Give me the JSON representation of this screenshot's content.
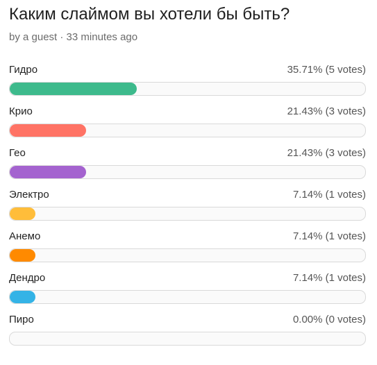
{
  "poll": {
    "title": "Каким слаймом вы хотели бы быть?",
    "meta": "by a guest · 33 minutes ago",
    "options": [
      {
        "label": "Гидро",
        "stats": "35.71% (5 votes)",
        "percent": 35.71,
        "color": "#3dba8c"
      },
      {
        "label": "Крио",
        "stats": "21.43% (3 votes)",
        "percent": 21.43,
        "color": "#ff7365"
      },
      {
        "label": "Гео",
        "stats": "21.43% (3 votes)",
        "percent": 21.43,
        "color": "#a463cf"
      },
      {
        "label": "Электро",
        "stats": "7.14% (1 votes)",
        "percent": 7.14,
        "color": "#ffbd3a"
      },
      {
        "label": "Анемо",
        "stats": "7.14% (1 votes)",
        "percent": 7.14,
        "color": "#ff8a00"
      },
      {
        "label": "Дендро",
        "stats": "7.14% (1 votes)",
        "percent": 7.14,
        "color": "#34b3e6"
      },
      {
        "label": "Пиро",
        "stats": "0.00% (0 votes)",
        "percent": 0,
        "color": "#cccccc"
      }
    ]
  }
}
